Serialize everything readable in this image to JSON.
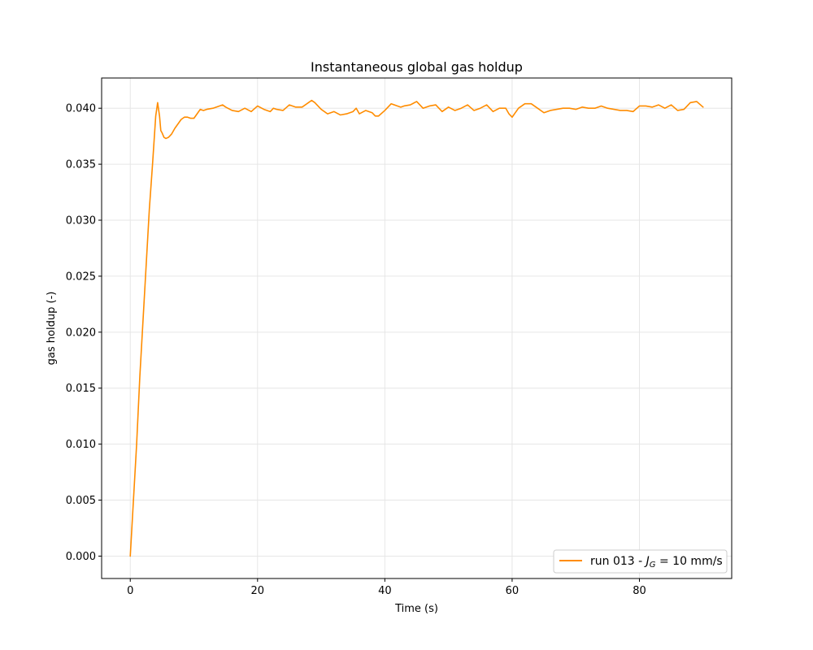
{
  "chart_data": {
    "type": "line",
    "title": "Instantaneous global gas holdup",
    "xlabel": "Time (s)",
    "ylabel": "gas holdup (-)",
    "xlim": [
      -4.5,
      94.5
    ],
    "ylim": [
      -0.002,
      0.0427
    ],
    "xticks": [
      0,
      20,
      40,
      60,
      80
    ],
    "xtick_labels": [
      "0",
      "20",
      "40",
      "60",
      "80"
    ],
    "yticks": [
      0.0,
      0.005,
      0.01,
      0.015,
      0.02,
      0.025,
      0.03,
      0.035,
      0.04
    ],
    "ytick_labels": [
      "0.000",
      "0.005",
      "0.010",
      "0.015",
      "0.020",
      "0.025",
      "0.030",
      "0.035",
      "0.040"
    ],
    "grid": true,
    "legend_position": "lower-right",
    "colors": {
      "series": "#ff8c00",
      "axes": "#000000",
      "grid": "#e6e6e6"
    },
    "series": [
      {
        "name": "run 013 - J_G = 10 mm/s",
        "legend": {
          "prefix": "run 013 - ",
          "var": "J",
          "sub": "G",
          "suffix": " = 10 mm/s"
        },
        "x": [
          0,
          0.5,
          1,
          1.5,
          2,
          2.5,
          3,
          3.5,
          4,
          4.3,
          4.6,
          4.8,
          5,
          5.3,
          5.6,
          6,
          6.5,
          7,
          7.5,
          8,
          8.5,
          9,
          9.5,
          10,
          10.5,
          11,
          11.5,
          12,
          13,
          14,
          14.5,
          15,
          16,
          17,
          18,
          19,
          20,
          21,
          22,
          22.5,
          23,
          24,
          25,
          26,
          27,
          28,
          28.5,
          29,
          30,
          31,
          32,
          33,
          34,
          35,
          35.5,
          36,
          37,
          38,
          38.5,
          39,
          40,
          41,
          42,
          42.5,
          43,
          44,
          45,
          46,
          47,
          48,
          49,
          50,
          51,
          52,
          53,
          54,
          55,
          56,
          57,
          58,
          59,
          59.5,
          60,
          60.5,
          61,
          62,
          63,
          64,
          65,
          66,
          67,
          68,
          69,
          70,
          71,
          72,
          73,
          74,
          75,
          76,
          77,
          78,
          79,
          80,
          81,
          82,
          83,
          84,
          85,
          86,
          87,
          88,
          89,
          90
        ],
        "y": [
          0.0,
          0.005,
          0.01,
          0.016,
          0.021,
          0.026,
          0.031,
          0.035,
          0.0393,
          0.0405,
          0.0393,
          0.038,
          0.0378,
          0.0374,
          0.0373,
          0.0374,
          0.0377,
          0.0382,
          0.0386,
          0.039,
          0.0392,
          0.0392,
          0.0391,
          0.0391,
          0.0395,
          0.0399,
          0.0398,
          0.0399,
          0.04,
          0.0402,
          0.0403,
          0.0401,
          0.0398,
          0.0397,
          0.04,
          0.0397,
          0.0402,
          0.0399,
          0.0397,
          0.04,
          0.0399,
          0.0398,
          0.0403,
          0.0401,
          0.0401,
          0.0405,
          0.0407,
          0.0405,
          0.0399,
          0.0395,
          0.0397,
          0.0394,
          0.0395,
          0.0397,
          0.04,
          0.0395,
          0.0398,
          0.0396,
          0.0393,
          0.0393,
          0.0398,
          0.0404,
          0.0402,
          0.0401,
          0.0402,
          0.0403,
          0.0406,
          0.04,
          0.0402,
          0.0403,
          0.0397,
          0.0401,
          0.0398,
          0.04,
          0.0403,
          0.0398,
          0.04,
          0.0403,
          0.0397,
          0.04,
          0.04,
          0.0395,
          0.0392,
          0.0396,
          0.04,
          0.0404,
          0.0404,
          0.04,
          0.0396,
          0.0398,
          0.0399,
          0.04,
          0.04,
          0.0399,
          0.0401,
          0.04,
          0.04,
          0.0402,
          0.04,
          0.0399,
          0.0398,
          0.0398,
          0.0397,
          0.0402,
          0.0402,
          0.0401,
          0.0403,
          0.04,
          0.0403,
          0.0398,
          0.0399,
          0.0405,
          0.0406,
          0.0401
        ]
      }
    ]
  }
}
